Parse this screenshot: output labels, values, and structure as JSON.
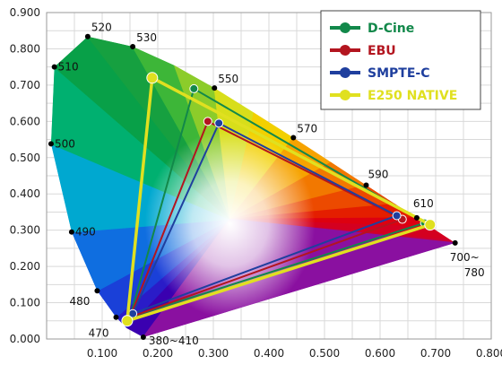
{
  "chart_data": {
    "type": "scatter",
    "title": "",
    "xlabel": "",
    "ylabel": "",
    "xlim": [
      0.0,
      0.8
    ],
    "ylim": [
      0.0,
      0.9
    ],
    "grid": true,
    "legend_position": "top-right",
    "x_ticks": [
      "0.100",
      "0.200",
      "0.300",
      "0.400",
      "0.500",
      "0.600",
      "0.700",
      "0.800"
    ],
    "x_tick_values": [
      0.1,
      0.2,
      0.3,
      0.4,
      0.5,
      0.6,
      0.7,
      0.8
    ],
    "y_ticks": [
      "0.000",
      "0.100",
      "0.200",
      "0.300",
      "0.400",
      "0.500",
      "0.600",
      "0.700",
      "0.800",
      "0.900"
    ],
    "y_tick_values": [
      0.0,
      0.1,
      0.2,
      0.3,
      0.4,
      0.5,
      0.6,
      0.7,
      0.8,
      0.9
    ],
    "spectral_locus": [
      [
        0.174,
        0.005
      ],
      [
        0.144,
        0.03
      ],
      [
        0.125,
        0.06
      ],
      [
        0.091,
        0.133
      ],
      [
        0.045,
        0.295
      ],
      [
        0.008,
        0.538
      ],
      [
        0.014,
        0.75
      ],
      [
        0.074,
        0.834
      ],
      [
        0.155,
        0.806
      ],
      [
        0.23,
        0.754
      ],
      [
        0.302,
        0.692
      ],
      [
        0.373,
        0.624
      ],
      [
        0.444,
        0.555
      ],
      [
        0.512,
        0.487
      ],
      [
        0.575,
        0.424
      ],
      [
        0.627,
        0.372
      ],
      [
        0.666,
        0.334
      ],
      [
        0.692,
        0.308
      ],
      [
        0.728,
        0.272
      ],
      [
        0.735,
        0.265
      ]
    ],
    "wavelength_labels": [
      {
        "label": "520",
        "x": 0.074,
        "y": 0.834
      },
      {
        "label": "530",
        "x": 0.155,
        "y": 0.806
      },
      {
        "label": "510",
        "x": 0.014,
        "y": 0.75
      },
      {
        "label": "550",
        "x": 0.302,
        "y": 0.692
      },
      {
        "label": "500",
        "x": 0.008,
        "y": 0.538
      },
      {
        "label": "570",
        "x": 0.444,
        "y": 0.555
      },
      {
        "label": "590",
        "x": 0.575,
        "y": 0.424
      },
      {
        "label": "610",
        "x": 0.666,
        "y": 0.334
      },
      {
        "label": "490",
        "x": 0.045,
        "y": 0.295
      },
      {
        "label": "700~\n780",
        "x": 0.735,
        "y": 0.265
      },
      {
        "label": "480",
        "x": 0.091,
        "y": 0.133
      },
      {
        "label": "470",
        "x": 0.125,
        "y": 0.06
      },
      {
        "label": "380~410",
        "x": 0.174,
        "y": 0.005
      }
    ],
    "series": [
      {
        "name": "D-Cine",
        "color": "#12884a",
        "points": [
          [
            0.68,
            0.32
          ],
          [
            0.265,
            0.69
          ],
          [
            0.15,
            0.06
          ]
        ]
      },
      {
        "name": "EBU",
        "color": "#b3151f",
        "points": [
          [
            0.64,
            0.33
          ],
          [
            0.29,
            0.6
          ],
          [
            0.15,
            0.06
          ]
        ]
      },
      {
        "name": "SMPTE-C",
        "color": "#1f3f9e",
        "points": [
          [
            0.63,
            0.34
          ],
          [
            0.31,
            0.595
          ],
          [
            0.155,
            0.07
          ]
        ]
      },
      {
        "name": "E250 NATIVE",
        "color": "#e0e020",
        "points": [
          [
            0.69,
            0.315
          ],
          [
            0.19,
            0.72
          ],
          [
            0.145,
            0.05
          ]
        ]
      }
    ]
  }
}
